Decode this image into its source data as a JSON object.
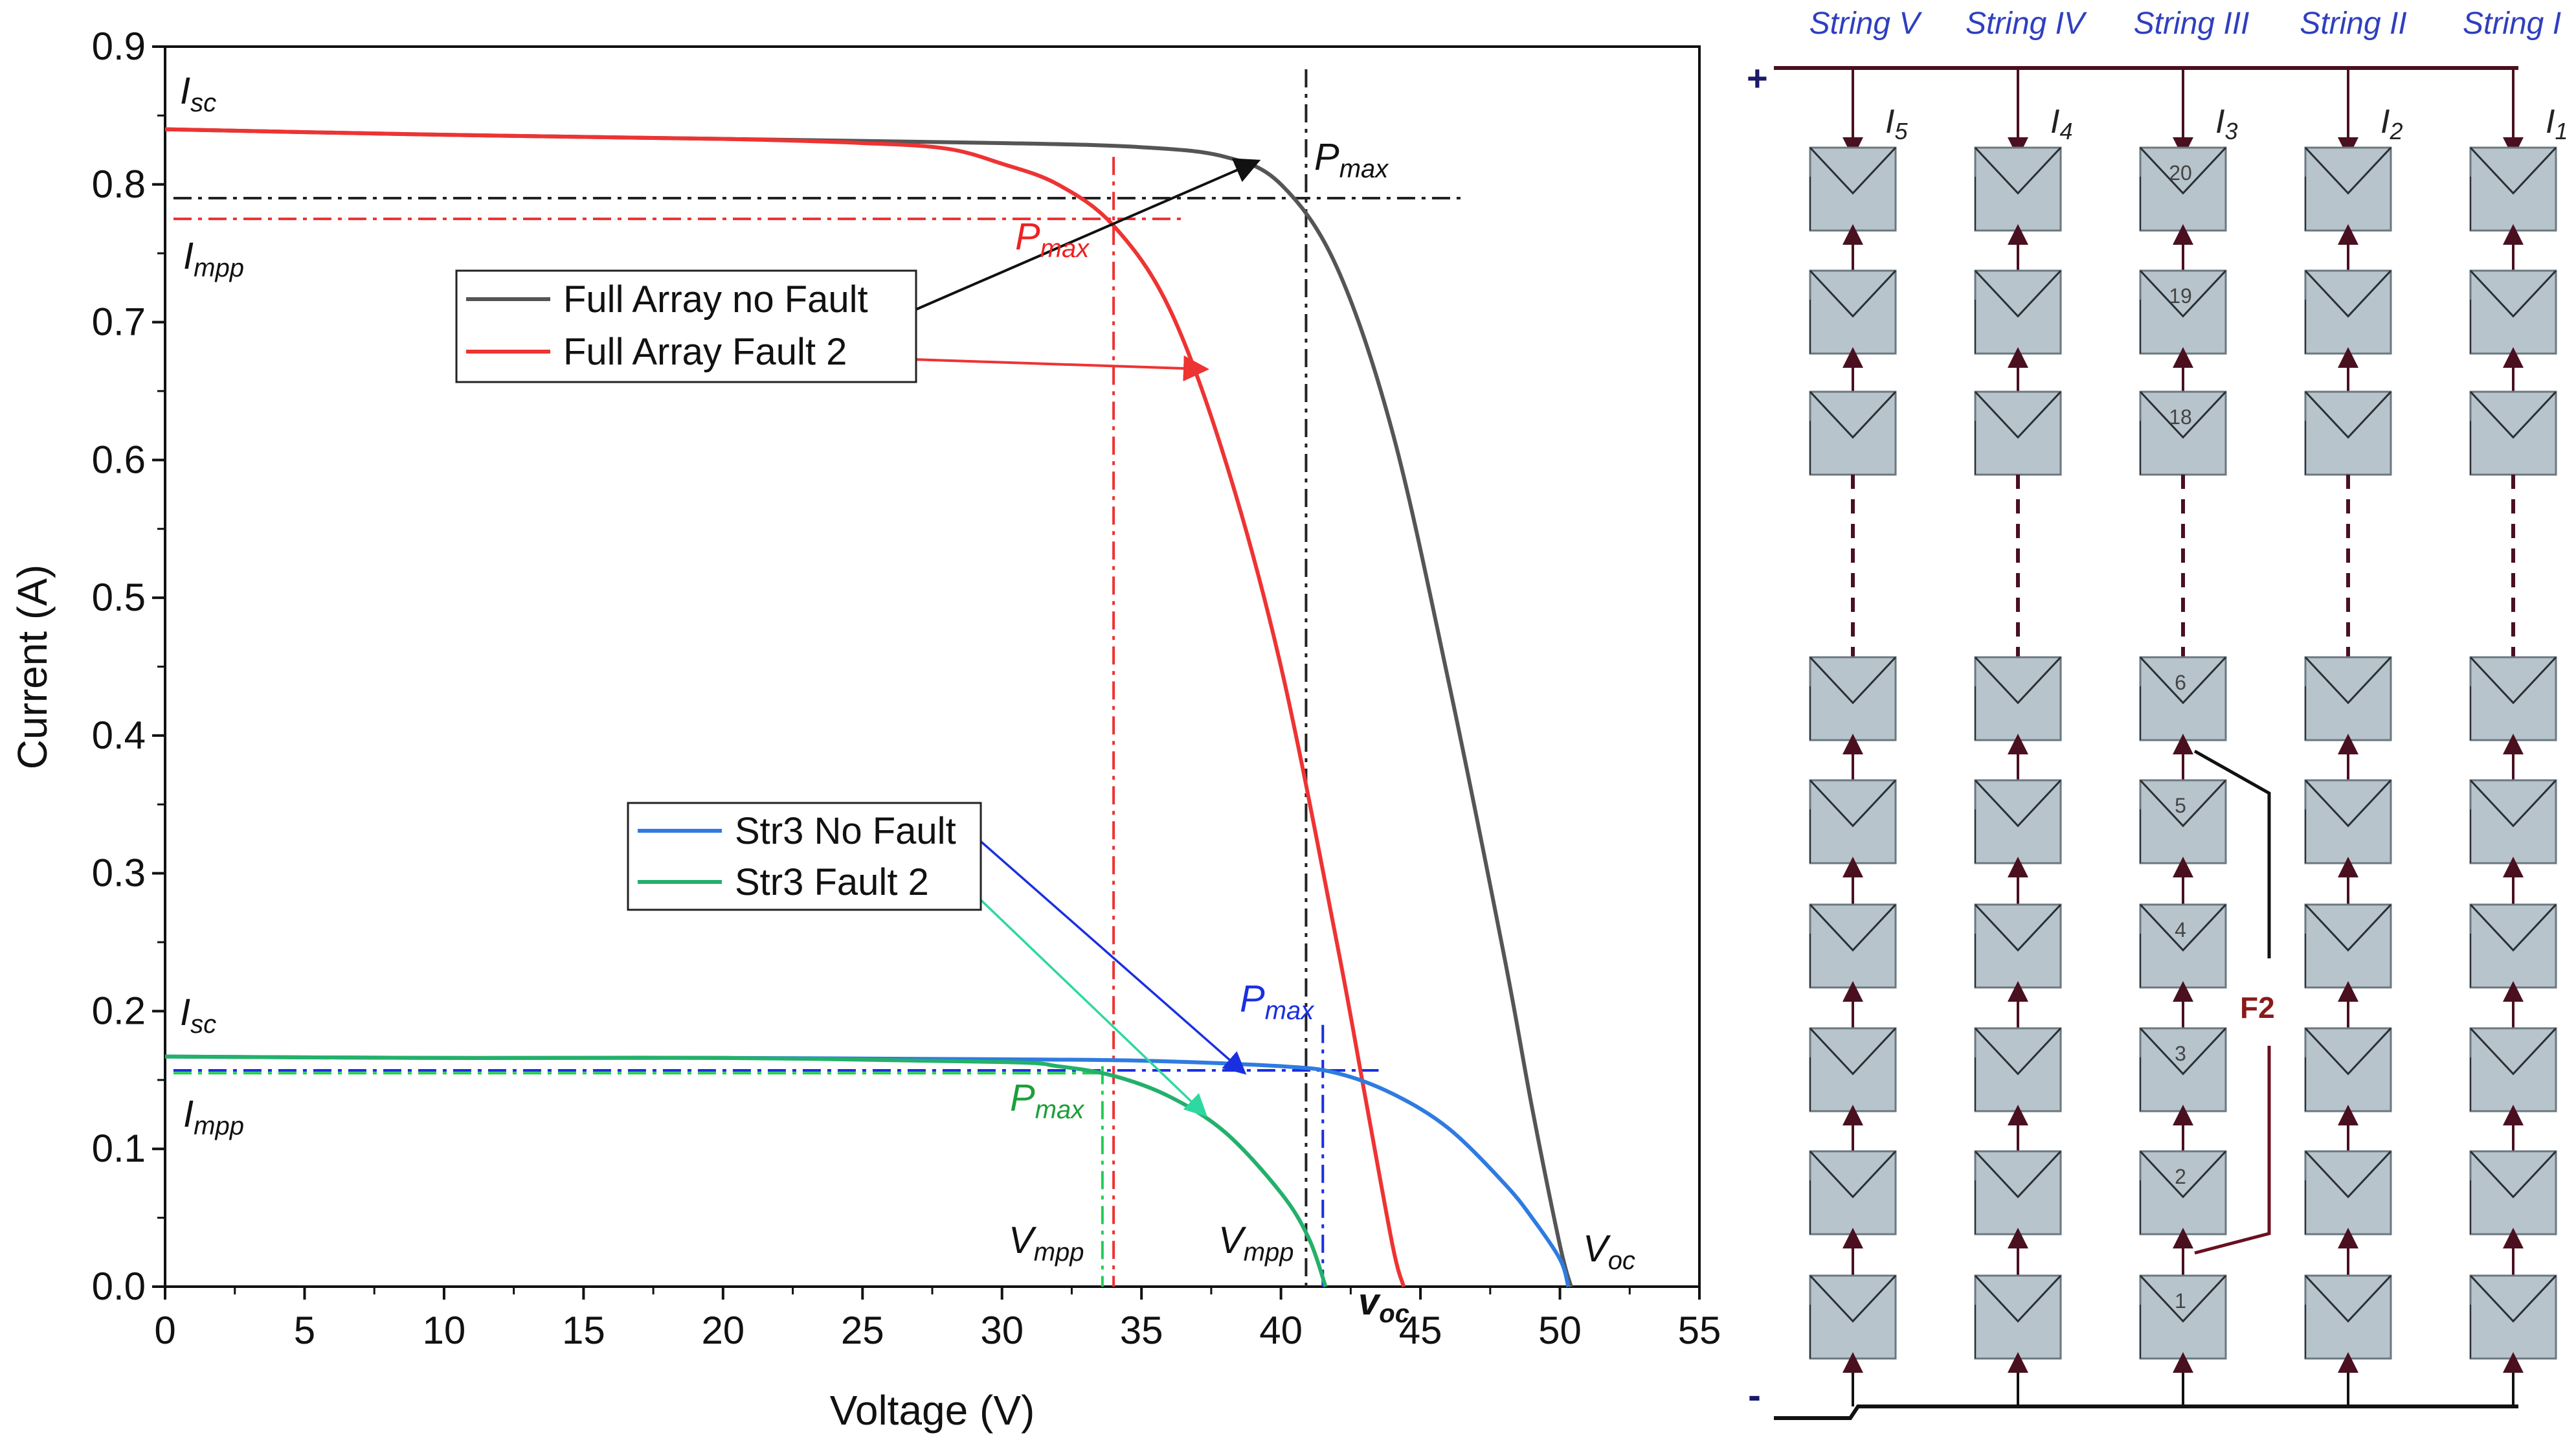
{
  "chart_data": {
    "type": "line",
    "title": "",
    "xlabel": "Voltage (V)",
    "ylabel": "Current (A)",
    "xlim": [
      0,
      55
    ],
    "ylim": [
      0,
      0.9
    ],
    "xticks": [
      "0",
      "5",
      "10",
      "15",
      "20",
      "25",
      "30",
      "35",
      "40",
      "45",
      "50",
      "55"
    ],
    "yticks": [
      "0.0",
      "0.1",
      "0.2",
      "0.3",
      "0.4",
      "0.5",
      "0.6",
      "0.7",
      "0.8",
      "0.9"
    ],
    "colors": {
      "noFault": "#555555",
      "fault2": "#ee3333",
      "str3NoFault": "#2f7be0",
      "str3Fault2": "#23b06b"
    },
    "series": [
      {
        "name": "Full Array no Fault",
        "color": "#555555",
        "x": [
          0,
          10,
          20,
          30,
          35,
          38,
          40,
          42,
          44,
          46,
          48,
          49,
          50,
          50.4
        ],
        "y": [
          0.84,
          0.836,
          0.833,
          0.83,
          0.827,
          0.82,
          0.8,
          0.74,
          0.62,
          0.44,
          0.24,
          0.13,
          0.03,
          0
        ]
      },
      {
        "name": "Full Array Fault 2",
        "color": "#ee3333",
        "x": [
          0,
          10,
          20,
          25,
          28,
          30,
          32,
          34,
          36,
          38,
          40,
          42,
          43,
          44,
          44.4
        ],
        "y": [
          0.84,
          0.836,
          0.833,
          0.83,
          0.826,
          0.815,
          0.8,
          0.77,
          0.71,
          0.6,
          0.45,
          0.25,
          0.14,
          0.03,
          0
        ]
      },
      {
        "name": "Str3 No Fault",
        "color": "#2f7be0",
        "x": [
          0,
          10,
          20,
          30,
          35,
          40,
          42,
          44,
          46,
          48,
          49,
          50,
          50.3
        ],
        "y": [
          0.167,
          0.166,
          0.166,
          0.165,
          0.164,
          0.16,
          0.155,
          0.14,
          0.115,
          0.075,
          0.05,
          0.02,
          0
        ]
      },
      {
        "name": "Str3 Fault 2",
        "color": "#23b06b",
        "x": [
          0,
          10,
          20,
          30,
          32,
          34,
          36,
          38,
          40,
          41,
          41.6
        ],
        "y": [
          0.167,
          0.166,
          0.166,
          0.163,
          0.16,
          0.153,
          0.138,
          0.112,
          0.068,
          0.035,
          0
        ]
      }
    ],
    "legends": [
      {
        "entries": [
          {
            "label": "Full Array no Fault",
            "color": "#555555"
          },
          {
            "label": "Full Array Fault 2",
            "color": "#ee3333"
          }
        ]
      },
      {
        "entries": [
          {
            "label": "Str3 No Fault",
            "color": "#2f7be0"
          },
          {
            "label": "Str3 Fault 2",
            "color": "#23b06b"
          }
        ]
      }
    ],
    "annotations": {
      "isc_top": {
        "main": "I",
        "sub": "sc"
      },
      "impp_top": {
        "main": "I",
        "sub": "mpp"
      },
      "pmax_black": {
        "main": "P",
        "sub": "max"
      },
      "pmax_red": {
        "main": "P",
        "sub": "max"
      },
      "isc_bottom": {
        "main": "I",
        "sub": "sc"
      },
      "impp_bottom": {
        "main": "I",
        "sub": "mpp"
      },
      "pmax_blue": {
        "main": "P",
        "sub": "max"
      },
      "pmax_green": {
        "main": "P",
        "sub": "max"
      },
      "vmpp_green": {
        "main": "V",
        "sub": "mpp"
      },
      "vmpp_black": {
        "main": "V",
        "sub": "mpp"
      },
      "voc_black": {
        "main": "V",
        "sub": "oc"
      },
      "voc_red": {
        "main": "v",
        "sub": "oc"
      }
    },
    "reference_lines": {
      "full_array_pmax": {
        "voltage": 40.9,
        "current": 0.79
      },
      "fault2_pmax": {
        "voltage": 34.0,
        "current": 0.775
      },
      "str3_pmax": {
        "voltage": 41.5,
        "current": 0.157
      },
      "str3_fault2_pmax": {
        "voltage": 33.6,
        "current": 0.155
      }
    }
  },
  "diagram": {
    "plus": "+",
    "minus": "-",
    "strings": [
      "String V",
      "String IV",
      "String III",
      "String II",
      "String I"
    ],
    "currents": [
      {
        "main": "I",
        "sub": "5"
      },
      {
        "main": "I",
        "sub": "4"
      },
      {
        "main": "I",
        "sub": "3"
      },
      {
        "main": "I",
        "sub": "2"
      },
      {
        "main": "I",
        "sub": "1"
      }
    ],
    "module_numbers": [
      "20",
      "19",
      "18",
      "6",
      "5",
      "4",
      "3",
      "2",
      "1"
    ],
    "fault_label": "F2"
  }
}
